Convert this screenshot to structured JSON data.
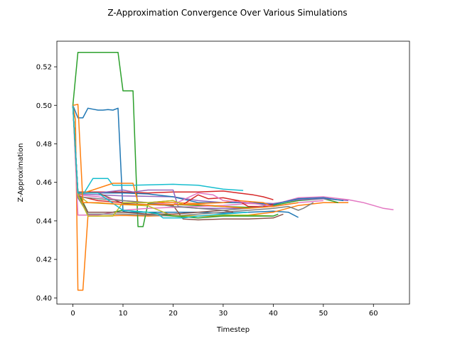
{
  "chart_data": {
    "type": "line",
    "title": "Z-Approximation Convergence Over Various Simulations",
    "xlabel": "Timestep",
    "ylabel": "Z-Approximation",
    "xlim": [
      -3.2,
      67.2
    ],
    "ylim": [
      0.3968,
      0.5333
    ],
    "xticks": [
      0,
      10,
      20,
      30,
      40,
      50,
      60
    ],
    "xtick_labels": [
      "0",
      "10",
      "20",
      "30",
      "40",
      "50",
      "60"
    ],
    "yticks": [
      0.4,
      0.42,
      0.44,
      0.46,
      0.48,
      0.5,
      0.52
    ],
    "ytick_labels": [
      "0.40",
      "0.42",
      "0.44",
      "0.46",
      "0.48",
      "0.50",
      "0.52"
    ],
    "grid": false,
    "legend": "none",
    "series": [
      {
        "color": "#1f77b4",
        "points": [
          [
            0,
            0.5
          ],
          [
            1,
            0.4935
          ],
          [
            2,
            0.4935
          ],
          [
            3,
            0.4985
          ],
          [
            4,
            0.498
          ],
          [
            5,
            0.4975
          ],
          [
            6,
            0.4975
          ],
          [
            7,
            0.4978
          ],
          [
            8,
            0.4975
          ],
          [
            9,
            0.4985
          ],
          [
            10,
            0.445
          ],
          [
            11,
            0.4445
          ],
          [
            15,
            0.4445
          ],
          [
            20,
            0.4445
          ],
          [
            25,
            0.4445
          ],
          [
            30,
            0.444
          ],
          [
            35,
            0.4445
          ],
          [
            40,
            0.445
          ],
          [
            43,
            0.4445
          ],
          [
            45,
            0.4418
          ]
        ]
      },
      {
        "color": "#ff7f0e",
        "points": [
          [
            0,
            0.5
          ],
          [
            0.5,
            0.4925
          ],
          [
            1,
            0.404
          ],
          [
            2,
            0.404
          ],
          [
            3,
            0.4425
          ],
          [
            5,
            0.4425
          ],
          [
            10,
            0.4428
          ],
          [
            15,
            0.4425
          ],
          [
            20,
            0.4428
          ],
          [
            25,
            0.4425
          ],
          [
            30,
            0.4425
          ],
          [
            35,
            0.443
          ],
          [
            40,
            0.4445
          ],
          [
            45,
            0.448
          ],
          [
            50,
            0.4495
          ],
          [
            55,
            0.4495
          ]
        ]
      },
      {
        "color": "#2ca02c",
        "points": [
          [
            0,
            0.5
          ],
          [
            1,
            0.5275
          ],
          [
            9,
            0.5275
          ],
          [
            10,
            0.5075
          ],
          [
            12,
            0.5075
          ],
          [
            13,
            0.437
          ],
          [
            14,
            0.437
          ],
          [
            15,
            0.449
          ],
          [
            20,
            0.4485
          ],
          [
            25,
            0.448
          ],
          [
            30,
            0.4475
          ],
          [
            35,
            0.447
          ],
          [
            40,
            0.448
          ],
          [
            45,
            0.4505
          ],
          [
            50,
            0.4515
          ],
          [
            53,
            0.4495
          ]
        ]
      },
      {
        "color": "#d62728",
        "points": [
          [
            0,
            0.5
          ],
          [
            1,
            0.455
          ],
          [
            5,
            0.455
          ],
          [
            10,
            0.455
          ],
          [
            15,
            0.4545
          ],
          [
            20,
            0.455
          ],
          [
            25,
            0.455
          ],
          [
            30,
            0.4555
          ],
          [
            33,
            0.4545
          ],
          [
            36,
            0.4535
          ],
          [
            38,
            0.4525
          ],
          [
            40,
            0.451
          ]
        ]
      },
      {
        "color": "#9467bd",
        "points": [
          [
            0,
            0.5
          ],
          [
            1,
            0.454
          ],
          [
            10,
            0.453
          ],
          [
            20,
            0.4525
          ],
          [
            25,
            0.4505
          ],
          [
            30,
            0.4495
          ],
          [
            35,
            0.4495
          ],
          [
            40,
            0.449
          ],
          [
            45,
            0.451
          ],
          [
            50,
            0.4515
          ],
          [
            55,
            0.4505
          ]
        ]
      },
      {
        "color": "#8c564b",
        "points": [
          [
            0,
            0.5
          ],
          [
            1,
            0.455
          ],
          [
            5,
            0.4545
          ],
          [
            10,
            0.449
          ],
          [
            15,
            0.4485
          ],
          [
            20,
            0.448
          ],
          [
            22,
            0.441
          ],
          [
            25,
            0.4405
          ],
          [
            30,
            0.441
          ],
          [
            35,
            0.441
          ],
          [
            40,
            0.4415
          ],
          [
            42,
            0.4435
          ]
        ]
      },
      {
        "color": "#e377c2",
        "points": [
          [
            0,
            0.5
          ],
          [
            1,
            0.443
          ],
          [
            5,
            0.443
          ],
          [
            10,
            0.4455
          ],
          [
            15,
            0.4465
          ],
          [
            20,
            0.447
          ],
          [
            25,
            0.4475
          ],
          [
            30,
            0.448
          ],
          [
            35,
            0.449
          ],
          [
            40,
            0.4485
          ],
          [
            45,
            0.452
          ],
          [
            50,
            0.4525
          ],
          [
            55,
            0.451
          ],
          [
            58,
            0.4495
          ],
          [
            60,
            0.448
          ],
          [
            62,
            0.4465
          ],
          [
            64,
            0.4458
          ]
        ]
      },
      {
        "color": "#7f7f7f",
        "points": [
          [
            0,
            0.5
          ],
          [
            1,
            0.452
          ],
          [
            3,
            0.4435
          ],
          [
            10,
            0.4435
          ],
          [
            20,
            0.4425
          ],
          [
            25,
            0.4435
          ],
          [
            30,
            0.4445
          ],
          [
            35,
            0.4455
          ],
          [
            40,
            0.4465
          ],
          [
            43,
            0.4475
          ],
          [
            45,
            0.4455
          ],
          [
            46,
            0.4465
          ],
          [
            48,
            0.4495
          ]
        ]
      },
      {
        "color": "#bcbd22",
        "points": [
          [
            0,
            0.5
          ],
          [
            1,
            0.4535
          ],
          [
            3,
            0.4495
          ],
          [
            10,
            0.4485
          ],
          [
            15,
            0.4478
          ],
          [
            20,
            0.4425
          ],
          [
            25,
            0.4425
          ],
          [
            30,
            0.443
          ],
          [
            35,
            0.443
          ],
          [
            40,
            0.4425
          ]
        ]
      },
      {
        "color": "#17becf",
        "points": [
          [
            0,
            0.5
          ],
          [
            1,
            0.454
          ],
          [
            2,
            0.4535
          ],
          [
            4,
            0.462
          ],
          [
            7,
            0.462
          ],
          [
            8,
            0.4585
          ],
          [
            12,
            0.4585
          ],
          [
            20,
            0.459
          ],
          [
            25,
            0.4585
          ],
          [
            30,
            0.4565
          ],
          [
            34,
            0.4558
          ]
        ]
      },
      {
        "color": "#1f77b4",
        "points": [
          [
            0,
            0.5
          ],
          [
            1,
            0.4545
          ],
          [
            5,
            0.4545
          ],
          [
            10,
            0.4545
          ],
          [
            15,
            0.454
          ],
          [
            20,
            0.4525
          ],
          [
            25,
            0.4495
          ],
          [
            30,
            0.4495
          ],
          [
            35,
            0.4495
          ],
          [
            40,
            0.4485
          ],
          [
            45,
            0.4515
          ],
          [
            50,
            0.452
          ],
          [
            54,
            0.4505
          ]
        ]
      },
      {
        "color": "#ff7f0e",
        "points": [
          [
            0,
            0.5
          ],
          [
            1,
            0.4535
          ],
          [
            8,
            0.4595
          ],
          [
            12,
            0.4595
          ],
          [
            13,
            0.4495
          ],
          [
            20,
            0.4495
          ],
          [
            25,
            0.449
          ],
          [
            30,
            0.4495
          ],
          [
            33,
            0.4505
          ],
          [
            38,
            0.4495
          ],
          [
            40,
            0.4475
          ]
        ]
      },
      {
        "color": "#2ca02c",
        "points": [
          [
            0,
            0.5
          ],
          [
            1,
            0.455
          ],
          [
            3,
            0.4445
          ],
          [
            8,
            0.4445
          ],
          [
            10,
            0.4455
          ],
          [
            15,
            0.4445
          ],
          [
            20,
            0.4425
          ],
          [
            25,
            0.4415
          ],
          [
            30,
            0.4425
          ],
          [
            35,
            0.4425
          ],
          [
            40,
            0.4425
          ],
          [
            41,
            0.4435
          ]
        ]
      },
      {
        "color": "#d62728",
        "points": [
          [
            0,
            0.5
          ],
          [
            1,
            0.453
          ],
          [
            5,
            0.4505
          ],
          [
            10,
            0.4495
          ],
          [
            15,
            0.4495
          ],
          [
            20,
            0.4505
          ],
          [
            22,
            0.4485
          ],
          [
            25,
            0.4535
          ],
          [
            27,
            0.4515
          ],
          [
            30,
            0.452
          ],
          [
            33,
            0.4505
          ],
          [
            35,
            0.4475
          ],
          [
            38,
            0.4475
          ],
          [
            40,
            0.4485
          ]
        ]
      },
      {
        "color": "#9467bd",
        "points": [
          [
            0,
            0.5
          ],
          [
            1,
            0.4545
          ],
          [
            5,
            0.4545
          ],
          [
            10,
            0.456
          ],
          [
            12,
            0.455
          ],
          [
            15,
            0.456
          ],
          [
            20,
            0.456
          ],
          [
            21,
            0.4475
          ],
          [
            25,
            0.4465
          ],
          [
            30,
            0.4465
          ],
          [
            35,
            0.4465
          ],
          [
            38,
            0.4475
          ]
        ]
      },
      {
        "color": "#8c564b",
        "points": [
          [
            0,
            0.5
          ],
          [
            1,
            0.4535
          ],
          [
            3,
            0.4445
          ],
          [
            10,
            0.4445
          ],
          [
            15,
            0.4435
          ],
          [
            20,
            0.4435
          ],
          [
            25,
            0.4445
          ],
          [
            30,
            0.4455
          ],
          [
            32,
            0.4445
          ]
        ]
      },
      {
        "color": "#e377c2",
        "points": [
          [
            0,
            0.5
          ],
          [
            1,
            0.4535
          ],
          [
            5,
            0.4525
          ],
          [
            10,
            0.4505
          ],
          [
            15,
            0.4495
          ],
          [
            20,
            0.4485
          ],
          [
            25,
            0.4545
          ],
          [
            28,
            0.4535
          ],
          [
            30,
            0.4505
          ],
          [
            35,
            0.4495
          ],
          [
            40,
            0.4475
          ],
          [
            45,
            0.4495
          ],
          [
            50,
            0.4505
          ]
        ]
      },
      {
        "color": "#7f7f7f",
        "points": [
          [
            0,
            0.5
          ],
          [
            1,
            0.4525
          ],
          [
            5,
            0.4515
          ],
          [
            10,
            0.4505
          ],
          [
            15,
            0.4495
          ],
          [
            20,
            0.4475
          ],
          [
            25,
            0.4465
          ],
          [
            30,
            0.4455
          ],
          [
            35,
            0.4465
          ]
        ]
      },
      {
        "color": "#bcbd22",
        "points": [
          [
            0,
            0.5
          ],
          [
            1,
            0.4535
          ],
          [
            3,
            0.4425
          ],
          [
            8,
            0.4425
          ],
          [
            10,
            0.4495
          ],
          [
            15,
            0.4495
          ],
          [
            20,
            0.4505
          ],
          [
            22,
            0.4485
          ],
          [
            25,
            0.4485
          ],
          [
            30,
            0.4475
          ]
        ]
      },
      {
        "color": "#17becf",
        "points": [
          [
            0,
            0.5
          ],
          [
            1,
            0.4545
          ],
          [
            5,
            0.4545
          ],
          [
            10,
            0.4455
          ],
          [
            15,
            0.4445
          ],
          [
            17,
            0.4435
          ],
          [
            18,
            0.4415
          ],
          [
            22,
            0.4415
          ],
          [
            25,
            0.4425
          ],
          [
            30,
            0.4435
          ],
          [
            35,
            0.4445
          ]
        ]
      },
      {
        "color": "#ff7f0e",
        "points": [
          [
            0,
            0.5
          ],
          [
            1,
            0.5005
          ],
          [
            2,
            0.4495
          ],
          [
            5,
            0.4495
          ],
          [
            10,
            0.4485
          ],
          [
            15,
            0.4485
          ],
          [
            20,
            0.4485
          ],
          [
            25,
            0.4485
          ],
          [
            30,
            0.4475
          ],
          [
            35,
            0.4465
          ],
          [
            40,
            0.4475
          ],
          [
            45,
            0.4495
          ]
        ]
      }
    ]
  }
}
